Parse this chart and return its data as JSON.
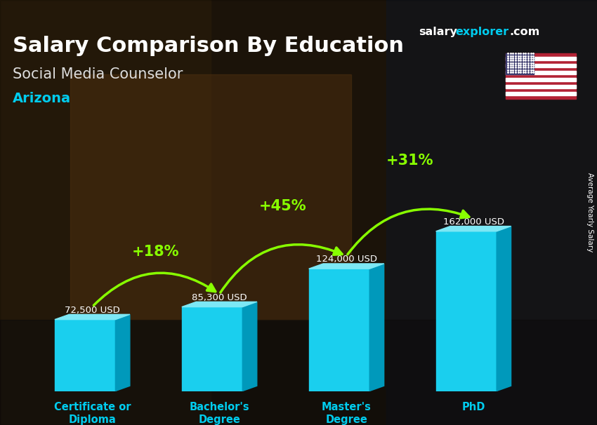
{
  "title_line1": "Salary Comparison By Education",
  "subtitle": "Social Media Counselor",
  "location": "Arizona",
  "ylabel": "Average Yearly Salary",
  "categories": [
    "Certificate or\nDiploma",
    "Bachelor's\nDegree",
    "Master's\nDegree",
    "PhD"
  ],
  "values": [
    72500,
    85300,
    124000,
    162000
  ],
  "value_labels": [
    "72,500 USD",
    "85,300 USD",
    "124,000 USD",
    "162,000 USD"
  ],
  "pct_labels": [
    "+18%",
    "+45%",
    "+31%"
  ],
  "bar_color_face": "#1ACFEE",
  "bar_color_top": "#7DE8F5",
  "bar_color_side": "#0099BB",
  "bg_left_color": "#3a2a1a",
  "bg_right_color": "#2a3040",
  "title_color": "#FFFFFF",
  "subtitle_color": "#DDDDDD",
  "location_color": "#00CCEE",
  "value_label_color": "#FFFFFF",
  "pct_label_color": "#88FF00",
  "xlabel_color": "#00CCEE",
  "brand_salary_color": "#FFFFFF",
  "brand_explorer_color": "#00CCEE",
  "brand_com_color": "#FFFFFF"
}
